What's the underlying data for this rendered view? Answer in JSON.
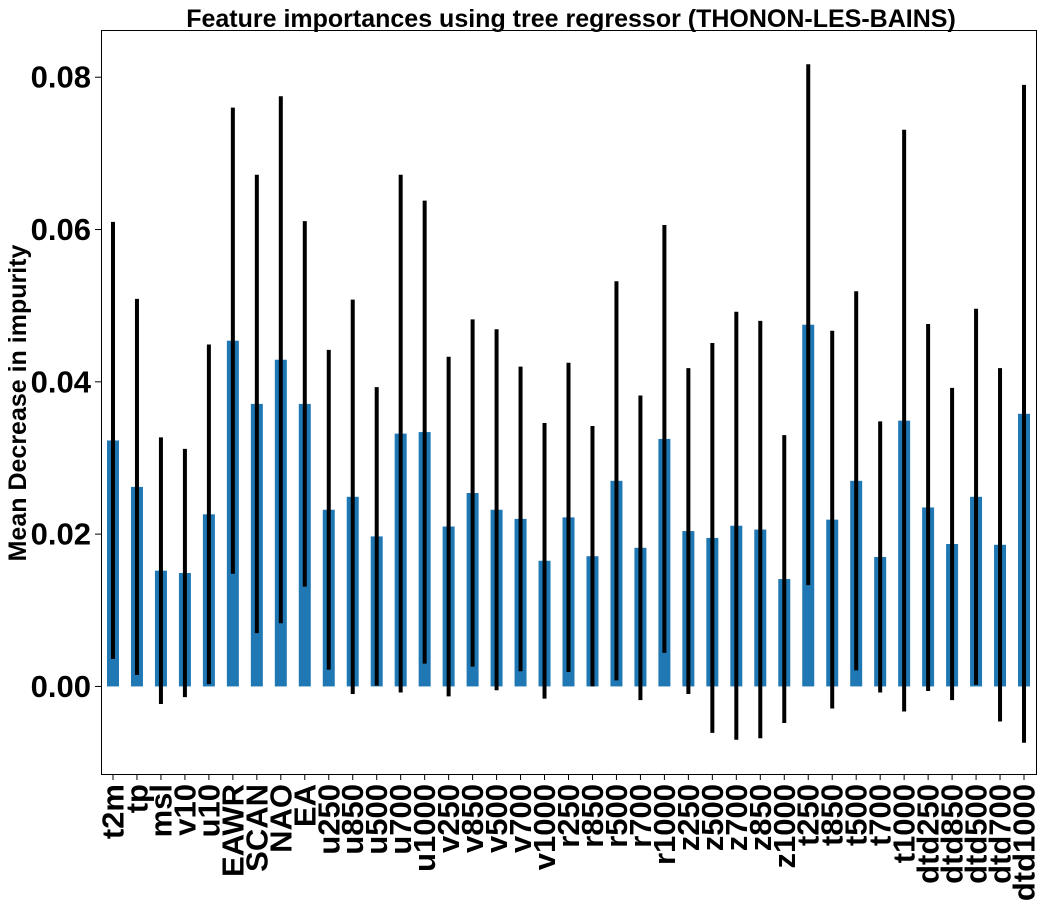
{
  "chart_data": {
    "type": "bar",
    "title": "Feature importances using tree regressor (THONON-LES-BAINS)",
    "xlabel": "",
    "ylabel": "Mean Decrease in impurity",
    "ylim": [
      -0.0115,
      0.0862
    ],
    "yticks": [
      0.0,
      0.02,
      0.04,
      0.06,
      0.08
    ],
    "ytick_labels": [
      "0.00",
      "0.02",
      "0.04",
      "0.06",
      "0.08"
    ],
    "bar_color": "#1f77b4",
    "errorbar_color": "#000000",
    "grid": false,
    "categories": [
      "t2m",
      "tp",
      "msl",
      "v10",
      "u10",
      "EAWR",
      "SCAN",
      "NAO",
      "EA",
      "u250",
      "u850",
      "u500",
      "u700",
      "u1000",
      "v250",
      "v850",
      "v500",
      "v700",
      "v1000",
      "r250",
      "r850",
      "r500",
      "r700",
      "r1000",
      "z250",
      "z500",
      "z700",
      "z850",
      "z1000",
      "t250",
      "t850",
      "t500",
      "t700",
      "t1000",
      "dtd250",
      "dtd850",
      "dtd500",
      "dtd700",
      "dtd1000"
    ],
    "values": [
      0.0323,
      0.0262,
      0.0152,
      0.0149,
      0.0226,
      0.0454,
      0.0371,
      0.0429,
      0.0371,
      0.0232,
      0.0249,
      0.0197,
      0.0332,
      0.0334,
      0.021,
      0.0254,
      0.0232,
      0.022,
      0.0165,
      0.0222,
      0.0171,
      0.027,
      0.0182,
      0.0325,
      0.0204,
      0.0195,
      0.0211,
      0.0206,
      0.0141,
      0.0475,
      0.0219,
      0.027,
      0.017,
      0.0349,
      0.0235,
      0.0187,
      0.0249,
      0.0186,
      0.0358
    ],
    "error": [
      0.0287,
      0.0247,
      0.0175,
      0.0163,
      0.0223,
      0.0306,
      0.0301,
      0.0346,
      0.024,
      0.021,
      0.0259,
      0.0196,
      0.034,
      0.0304,
      0.0223,
      0.0228,
      0.0237,
      0.02,
      0.0181,
      0.0203,
      0.0171,
      0.0262,
      0.02,
      0.0281,
      0.0214,
      0.0256,
      0.0281,
      0.0274,
      0.0189,
      0.0342,
      0.0248,
      0.0249,
      0.0178,
      0.0382,
      0.0241,
      0.0205,
      0.0247,
      0.0232,
      0.0432
    ]
  }
}
